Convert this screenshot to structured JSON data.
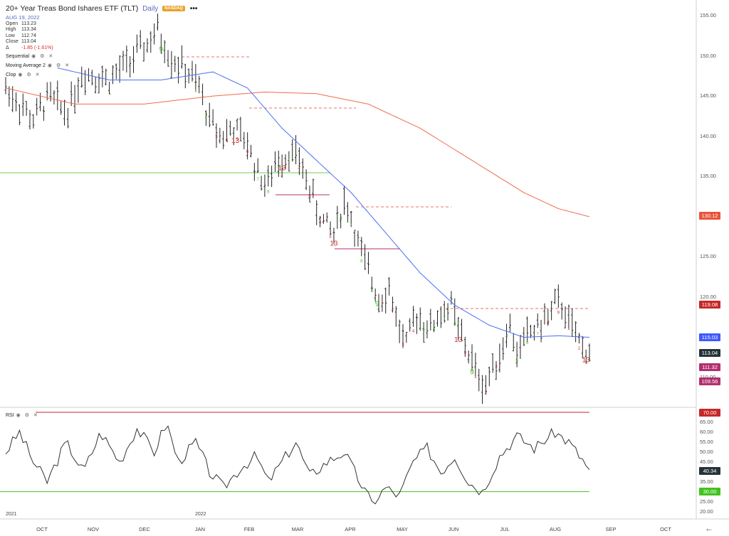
{
  "header": {
    "title": "20+ Year Treas Bond Ishares ETF (TLT)",
    "interval": "Daily",
    "exchange": "NASDAQ",
    "more": "•••",
    "date": "AUG 19, 2022"
  },
  "ohlc": [
    {
      "label": "Open",
      "value": "113.23"
    },
    {
      "label": "High",
      "value": "113.34"
    },
    {
      "label": "Low",
      "value": "112.74"
    },
    {
      "label": "Close",
      "value": "113.04"
    },
    {
      "label": "Δ",
      "value": "-1.85 (-1.61%)"
    }
  ],
  "indicators": [
    {
      "name": "Sequential",
      "icons": "◉ ⚙ ✕"
    },
    {
      "name": "Moving Average 2",
      "icons": "◉ ⚙ ✕"
    },
    {
      "name": "Clop",
      "icons": "◉ ⚙ ✕"
    }
  ],
  "rsi_label": "RSI",
  "rsi_icons": "◉ ⚙ ✕",
  "price_axis": [
    "155.00",
    "150.00",
    "145.00",
    "140.00",
    "135.00",
    "125.00",
    "120.00",
    "110.00"
  ],
  "price_tags": [
    {
      "value": "130.12",
      "color": "#e8553c",
      "price": 130.12
    },
    {
      "value": "119.08",
      "color": "#c62828",
      "price": 119.08
    },
    {
      "value": "115.03",
      "color": "#3d5afe",
      "price": 115.03
    },
    {
      "value": "113.04",
      "color": "#263238",
      "price": 113.04
    },
    {
      "value": "111.32",
      "color": "#b0306e",
      "price": 111.32
    },
    {
      "value": "109.56",
      "color": "#b0306e",
      "price": 109.56
    }
  ],
  "rsi_axis": [
    "65.00",
    "60.00",
    "55.00",
    "50.00",
    "45.00",
    "35.00",
    "25.00",
    "20.00"
  ],
  "rsi_tags": [
    {
      "value": "70.00",
      "color": "#c62828",
      "level": 70
    },
    {
      "value": "40.34",
      "color": "#263238",
      "level": 40.34
    },
    {
      "value": "30.00",
      "color": "#43c21f",
      "level": 30
    }
  ],
  "months": [
    "OCT",
    "NOV",
    "DEC",
    "JAN",
    "FEB",
    "MAR",
    "APR",
    "MAY",
    "JUN",
    "JUL",
    "AUG",
    "SEP",
    "OCT"
  ],
  "years": [
    "2021",
    "2022"
  ],
  "back_icon": "←",
  "chart_data": {
    "type": "line",
    "title": "20+ Year Treas Bond Ishares ETF (TLT)",
    "x_unit": "trading days (Sep 2021 – Aug 19 2022)",
    "price": {
      "anchors_day_value": [
        [
          0,
          146
        ],
        [
          8,
          144
        ],
        [
          16,
          142
        ],
        [
          25,
          145
        ],
        [
          35,
          143
        ],
        [
          45,
          148
        ],
        [
          60,
          147
        ],
        [
          70,
          149
        ],
        [
          80,
          151
        ],
        [
          88,
          153
        ],
        [
          95,
          150
        ],
        [
          105,
          148
        ],
        [
          112,
          146
        ],
        [
          118,
          142
        ],
        [
          125,
          140
        ],
        [
          132,
          141
        ],
        [
          140,
          139
        ],
        [
          147,
          135
        ],
        [
          152,
          134
        ],
        [
          157,
          137
        ],
        [
          165,
          138
        ],
        [
          170,
          137
        ],
        [
          175,
          134
        ],
        [
          180,
          131
        ],
        [
          185,
          129
        ],
        [
          190,
          128
        ],
        [
          196,
          132
        ],
        [
          200,
          130
        ],
        [
          205,
          126
        ],
        [
          210,
          123
        ],
        [
          216,
          120
        ],
        [
          222,
          121
        ],
        [
          228,
          116
        ],
        [
          232,
          114
        ],
        [
          238,
          118
        ],
        [
          245,
          116
        ],
        [
          252,
          118
        ],
        [
          258,
          119
        ],
        [
          262,
          116
        ],
        [
          266,
          114
        ],
        [
          270,
          112
        ],
        [
          274,
          110
        ],
        [
          278,
          109
        ],
        [
          283,
          112
        ],
        [
          287,
          113
        ],
        [
          291,
          117
        ],
        [
          296,
          113
        ],
        [
          301,
          115
        ],
        [
          306,
          116
        ],
        [
          312,
          117
        ],
        [
          318,
          119
        ],
        [
          322,
          119
        ],
        [
          326,
          117
        ],
        [
          330,
          115
        ],
        [
          334,
          114
        ],
        [
          338,
          113
        ]
      ],
      "ylim": [
        107,
        157
      ]
    },
    "series": [
      {
        "name": "Moving Average 2 (blue)",
        "anchors_day_value": [
          [
            30,
            148.5
          ],
          [
            60,
            147
          ],
          [
            90,
            147
          ],
          [
            120,
            148
          ],
          [
            140,
            146
          ],
          [
            160,
            141
          ],
          [
            180,
            137
          ],
          [
            200,
            133
          ],
          [
            220,
            128
          ],
          [
            240,
            123
          ],
          [
            260,
            119
          ],
          [
            280,
            116.5
          ],
          [
            300,
            115
          ],
          [
            320,
            115.2
          ],
          [
            338,
            115
          ]
        ]
      },
      {
        "name": "Moving Average (red)",
        "anchors_day_value": [
          [
            0,
            146
          ],
          [
            40,
            144
          ],
          [
            80,
            144
          ],
          [
            120,
            145
          ],
          [
            150,
            145.5
          ],
          [
            180,
            145.3
          ],
          [
            210,
            144
          ],
          [
            240,
            141
          ],
          [
            270,
            137
          ],
          [
            300,
            133
          ],
          [
            320,
            131
          ],
          [
            338,
            130
          ]
        ]
      },
      {
        "name": "RSI",
        "anchors_day_value": [
          [
            0,
            50
          ],
          [
            8,
            60
          ],
          [
            16,
            45
          ],
          [
            24,
            35
          ],
          [
            35,
            55
          ],
          [
            45,
            40
          ],
          [
            55,
            60
          ],
          [
            66,
            45
          ],
          [
            76,
            62
          ],
          [
            86,
            50
          ],
          [
            93,
            65
          ],
          [
            100,
            45
          ],
          [
            110,
            55
          ],
          [
            118,
            40
          ],
          [
            126,
            32
          ],
          [
            136,
            42
          ],
          [
            145,
            48
          ],
          [
            152,
            35
          ],
          [
            160,
            45
          ],
          [
            168,
            55
          ],
          [
            176,
            38
          ],
          [
            186,
            45
          ],
          [
            196,
            50
          ],
          [
            205,
            35
          ],
          [
            212,
            24
          ],
          [
            220,
            32
          ],
          [
            228,
            28
          ],
          [
            236,
            45
          ],
          [
            244,
            52
          ],
          [
            252,
            40
          ],
          [
            260,
            48
          ],
          [
            268,
            35
          ],
          [
            276,
            30
          ],
          [
            286,
            48
          ],
          [
            296,
            58
          ],
          [
            306,
            52
          ],
          [
            318,
            60
          ],
          [
            326,
            55
          ],
          [
            334,
            46
          ],
          [
            338,
            40
          ]
        ]
      }
    ],
    "rsi_ylim": [
      18,
      72
    ],
    "levels": {
      "overbought": 70,
      "oversold": 30
    }
  }
}
